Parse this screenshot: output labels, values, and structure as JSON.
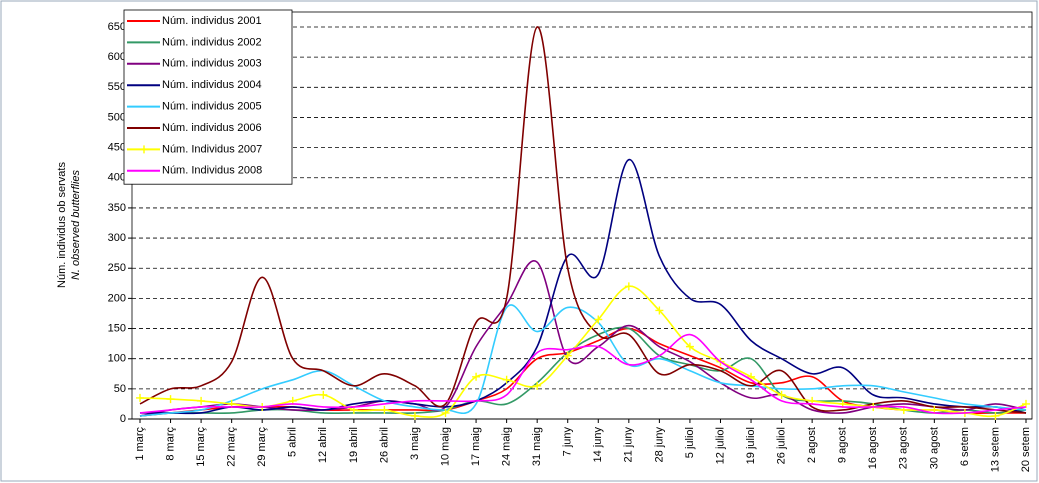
{
  "chart_data": {
    "type": "line",
    "y_label": "Núm. individus ob servats",
    "y_label_2": "N. observed butterflies",
    "categories": [
      "1 març",
      "8 març",
      "15 març",
      "22 març",
      "29 març",
      "5 abril",
      "12 abril",
      "19 abril",
      "26 abril",
      "3 maig",
      "10 maig",
      "17 maig",
      "24 maig",
      "31 maig",
      "7 juny",
      "14 juny",
      "21 juny",
      "28 juny",
      "5 juliol",
      "12 juliol",
      "19 juliol",
      "26 juliol",
      "2 agost",
      "9 agost",
      "16 agost",
      "23 agost",
      "30 agost",
      "6 setem",
      "13 setem",
      "20 setem"
    ],
    "ylim": [
      0,
      650
    ],
    "yticks": [
      0,
      50,
      100,
      150,
      200,
      250,
      300,
      350,
      400,
      450,
      500,
      550,
      600,
      650
    ],
    "grid": true,
    "legend": "upper left",
    "series": [
      {
        "name": "Núm. individus 2001",
        "color": "#ff0000",
        "values": [
          5,
          10,
          15,
          20,
          20,
          20,
          15,
          15,
          15,
          15,
          15,
          30,
          50,
          100,
          110,
          130,
          150,
          125,
          105,
          85,
          60,
          60,
          70,
          30,
          20,
          15,
          15,
          10,
          10,
          10
        ]
      },
      {
        "name": "Núm. individus 2002",
        "color": "#339966",
        "values": [
          5,
          10,
          10,
          10,
          15,
          15,
          10,
          10,
          10,
          10,
          15,
          30,
          25,
          60,
          110,
          140,
          150,
          105,
          90,
          80,
          100,
          40,
          30,
          30,
          25,
          15,
          10,
          15,
          10,
          15
        ]
      },
      {
        "name": "Núm. individus 2003",
        "color": "#800080",
        "values": [
          5,
          15,
          20,
          25,
          20,
          15,
          15,
          20,
          30,
          25,
          20,
          120,
          190,
          260,
          100,
          120,
          155,
          120,
          95,
          60,
          35,
          40,
          15,
          10,
          20,
          25,
          20,
          15,
          25,
          15
        ]
      },
      {
        "name": "Núm. individus 2004",
        "color": "#000080",
        "values": [
          10,
          10,
          10,
          20,
          15,
          20,
          15,
          25,
          30,
          25,
          20,
          30,
          60,
          120,
          270,
          240,
          430,
          270,
          200,
          190,
          130,
          100,
          75,
          85,
          40,
          35,
          25,
          20,
          20,
          10
        ]
      },
      {
        "name": "Núm. individus 2005",
        "color": "#33ccff",
        "values": [
          5,
          10,
          15,
          30,
          50,
          65,
          80,
          55,
          30,
          20,
          15,
          25,
          185,
          145,
          185,
          160,
          90,
          100,
          80,
          60,
          55,
          50,
          50,
          55,
          55,
          45,
          35,
          25,
          20,
          15
        ]
      },
      {
        "name": "Núm. individus 2006",
        "color": "#800000",
        "values": [
          25,
          50,
          55,
          95,
          235,
          100,
          80,
          55,
          75,
          55,
          25,
          160,
          200,
          650,
          250,
          140,
          140,
          75,
          90,
          80,
          55,
          80,
          20,
          15,
          25,
          30,
          20,
          20,
          15,
          10
        ]
      },
      {
        "name": "Núm. Individus 2007",
        "color": "#ffff00",
        "marker": "+",
        "values": [
          35,
          33,
          30,
          25,
          20,
          30,
          40,
          15,
          15,
          5,
          10,
          70,
          65,
          55,
          105,
          165,
          220,
          180,
          120,
          95,
          70,
          40,
          30,
          25,
          20,
          15,
          15,
          10,
          5,
          25
        ]
      },
      {
        "name": "Núm. Individus 2008",
        "color": "#ff00ff",
        "values": [
          10,
          15,
          20,
          20,
          20,
          25,
          20,
          20,
          25,
          30,
          30,
          30,
          40,
          110,
          115,
          120,
          90,
          105,
          140,
          95,
          65,
          30,
          25,
          20,
          20,
          20,
          10,
          10,
          15,
          20
        ]
      }
    ]
  }
}
